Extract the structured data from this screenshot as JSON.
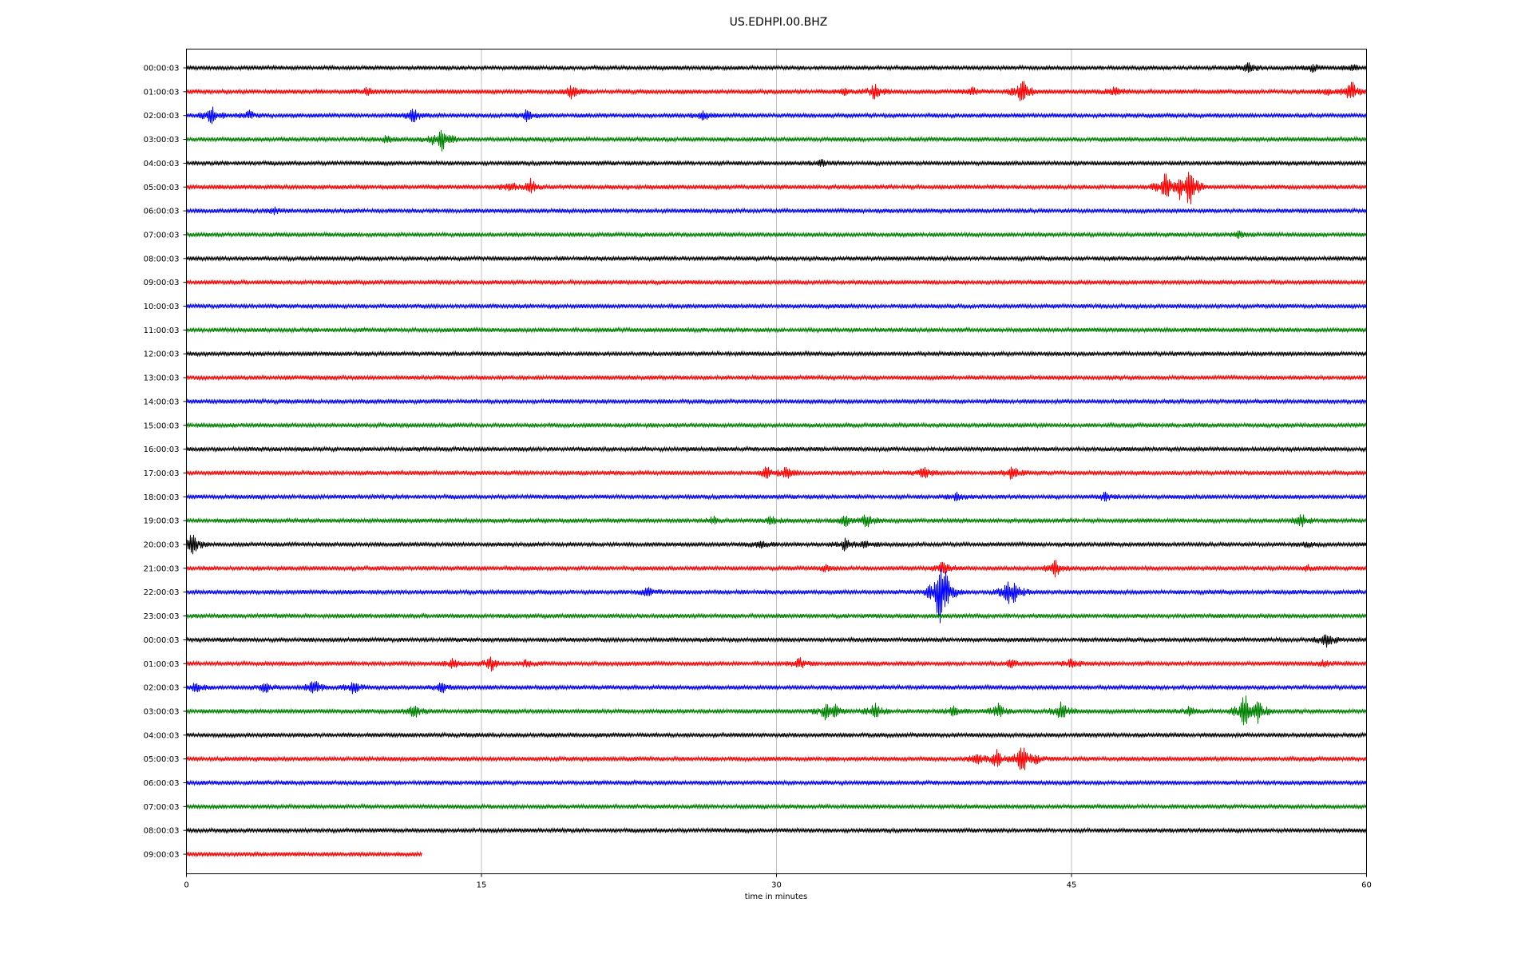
{
  "chart_data": {
    "type": "line",
    "title": "US.EDHPI.00.BHZ",
    "xlabel": "time in minutes",
    "ylabel": "",
    "xlim": [
      0,
      60
    ],
    "x_ticks": [
      0,
      15,
      30,
      45,
      60
    ],
    "grid": "vertical",
    "legend": "none",
    "colors": [
      "#000000",
      "#ff0000",
      "#0000ff",
      "#008000"
    ],
    "rows": [
      {
        "label": "00:00:03",
        "end": 60,
        "events": [
          [
            54,
            7
          ],
          [
            57.3,
            4
          ],
          [
            59.3,
            3
          ]
        ]
      },
      {
        "label": "01:00:03",
        "end": 60,
        "events": [
          [
            9.2,
            4
          ],
          [
            19.6,
            8
          ],
          [
            33.5,
            3
          ],
          [
            35,
            9
          ],
          [
            40,
            4
          ],
          [
            42.5,
            16
          ],
          [
            47.2,
            5
          ],
          [
            58,
            3
          ],
          [
            59.2,
            14
          ]
        ]
      },
      {
        "label": "02:00:03",
        "end": 60,
        "events": [
          [
            1.3,
            10
          ],
          [
            3.2,
            5
          ],
          [
            11.5,
            9
          ],
          [
            17.3,
            6
          ],
          [
            26.3,
            5
          ]
        ]
      },
      {
        "label": "03:00:03",
        "end": 60,
        "events": [
          [
            10.2,
            4
          ],
          [
            12.5,
            5
          ],
          [
            13,
            14
          ]
        ]
      },
      {
        "label": "04:00:03",
        "end": 60,
        "events": [
          [
            32.3,
            3
          ]
        ]
      },
      {
        "label": "05:00:03",
        "end": 60,
        "events": [
          [
            16.5,
            6
          ],
          [
            17.5,
            9
          ],
          [
            49.8,
            18
          ],
          [
            50.5,
            14
          ],
          [
            51,
            26
          ]
        ]
      },
      {
        "label": "06:00:03",
        "end": 60,
        "events": [
          [
            4.5,
            3
          ]
        ]
      },
      {
        "label": "07:00:03",
        "end": 60,
        "events": [
          [
            53.5,
            4
          ]
        ]
      },
      {
        "label": "08:00:03",
        "end": 60,
        "events": []
      },
      {
        "label": "09:00:03",
        "end": 60,
        "events": []
      },
      {
        "label": "10:00:03",
        "end": 60,
        "events": []
      },
      {
        "label": "11:00:03",
        "end": 60,
        "events": []
      },
      {
        "label": "12:00:03",
        "end": 60,
        "events": []
      },
      {
        "label": "13:00:03",
        "end": 60,
        "events": []
      },
      {
        "label": "14:00:03",
        "end": 60,
        "events": []
      },
      {
        "label": "15:00:03",
        "end": 60,
        "events": []
      },
      {
        "label": "16:00:03",
        "end": 60,
        "events": []
      },
      {
        "label": "17:00:03",
        "end": 60,
        "events": [
          [
            29.5,
            7
          ],
          [
            30.5,
            7
          ],
          [
            37.5,
            6
          ],
          [
            42,
            8
          ]
        ]
      },
      {
        "label": "18:00:03",
        "end": 60,
        "events": [
          [
            39.2,
            5
          ],
          [
            46.7,
            5
          ]
        ]
      },
      {
        "label": "19:00:03",
        "end": 60,
        "events": [
          [
            26.8,
            4
          ],
          [
            29.8,
            5
          ],
          [
            33.5,
            6
          ],
          [
            34.6,
            8
          ],
          [
            56.7,
            7
          ]
        ]
      },
      {
        "label": "20:00:03",
        "end": 60,
        "events": [
          [
            0.3,
            14
          ],
          [
            29.2,
            5
          ],
          [
            33.5,
            7
          ],
          [
            34.5,
            3
          ],
          [
            57,
            3
          ]
        ]
      },
      {
        "label": "21:00:03",
        "end": 60,
        "events": [
          [
            32.5,
            3
          ],
          [
            38.5,
            9
          ],
          [
            44.2,
            10
          ],
          [
            57,
            3
          ]
        ]
      },
      {
        "label": "22:00:03",
        "end": 60,
        "events": [
          [
            23.5,
            6
          ],
          [
            38.3,
            40
          ],
          [
            38.6,
            25
          ],
          [
            41.8,
            16
          ],
          [
            42.1,
            14
          ]
        ]
      },
      {
        "label": "23:00:03",
        "end": 60,
        "events": []
      },
      {
        "label": "00:00:03",
        "end": 60,
        "events": [
          [
            58,
            9
          ]
        ]
      },
      {
        "label": "01:00:03",
        "end": 60,
        "events": [
          [
            13.6,
            6
          ],
          [
            15.5,
            8
          ],
          [
            17.3,
            4
          ],
          [
            31.2,
            6
          ],
          [
            42,
            5
          ],
          [
            45,
            5
          ],
          [
            57.8,
            4
          ]
        ]
      },
      {
        "label": "02:00:03",
        "end": 60,
        "events": [
          [
            0.5,
            5
          ],
          [
            4,
            6
          ],
          [
            6.5,
            9
          ],
          [
            8.5,
            7
          ],
          [
            13,
            6
          ]
        ]
      },
      {
        "label": "03:00:03",
        "end": 60,
        "events": [
          [
            11.6,
            8
          ],
          [
            32.5,
            10
          ],
          [
            33,
            7
          ],
          [
            35,
            9
          ],
          [
            39,
            5
          ],
          [
            41.3,
            9
          ],
          [
            44.5,
            12
          ],
          [
            51,
            5
          ],
          [
            53.8,
            22
          ],
          [
            54.5,
            16
          ]
        ]
      },
      {
        "label": "04:00:03",
        "end": 60,
        "events": []
      },
      {
        "label": "05:00:03",
        "end": 60,
        "events": [
          [
            40.2,
            8
          ],
          [
            41.2,
            10
          ],
          [
            42.5,
            18
          ],
          [
            43.2,
            5
          ]
        ]
      },
      {
        "label": "06:00:03",
        "end": 60,
        "events": []
      },
      {
        "label": "07:00:03",
        "end": 60,
        "events": []
      },
      {
        "label": "08:00:03",
        "end": 60,
        "events": []
      },
      {
        "label": "09:00:03",
        "end": 12,
        "events": []
      }
    ]
  }
}
